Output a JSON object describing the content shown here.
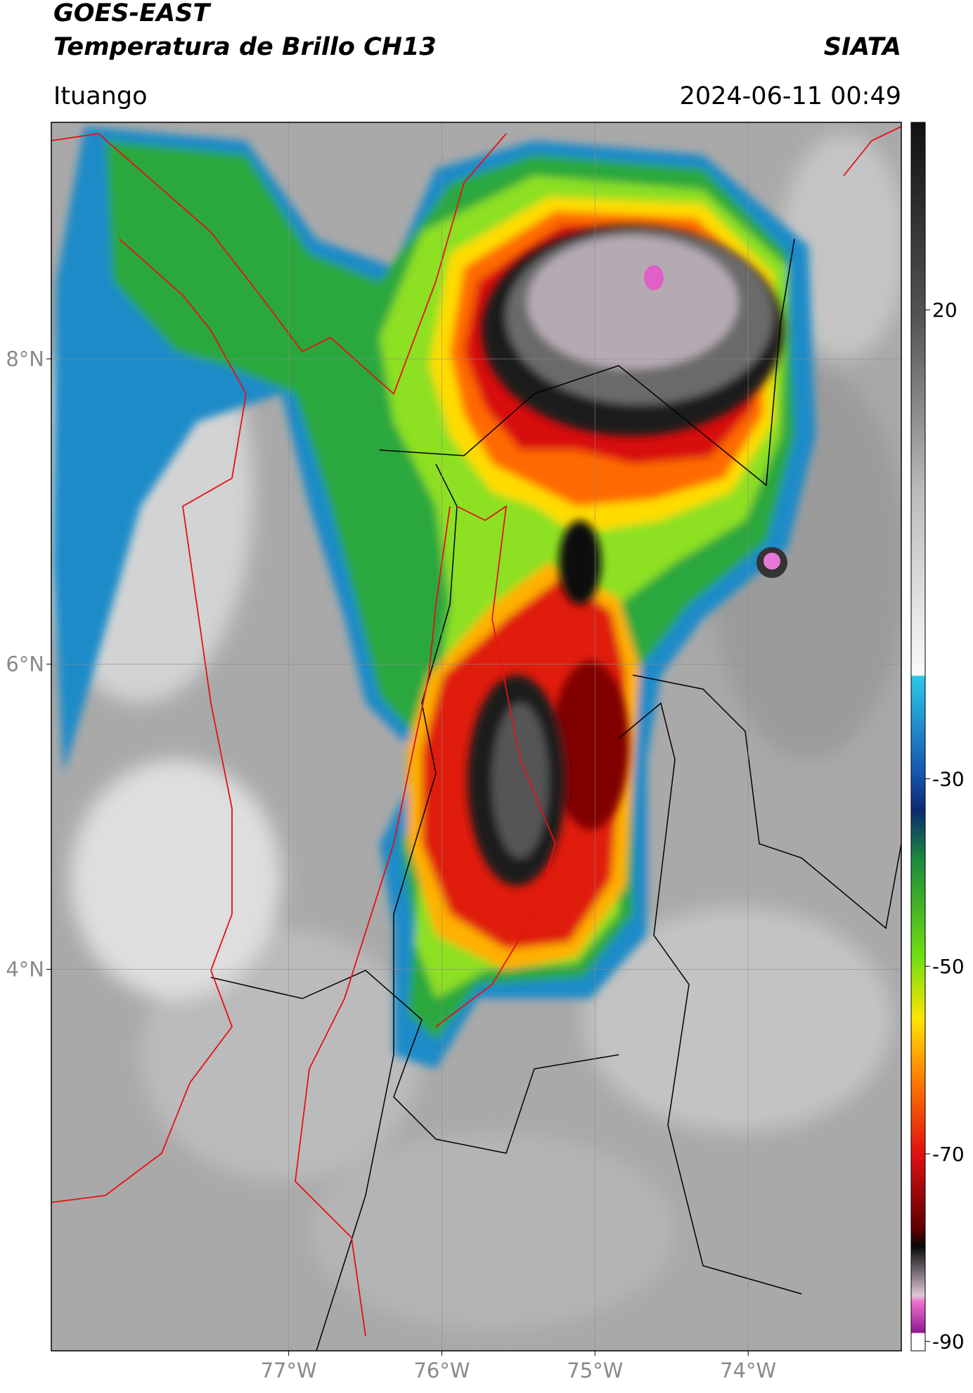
{
  "header": {
    "title": "GOES-EAST",
    "subtitle": "Temperatura de Brillo CH13",
    "credit": "SIATA",
    "location": "Ituango",
    "timestamp": "2024-06-11 00:49"
  },
  "chart_data": {
    "type": "map",
    "xlim": [
      -78.55,
      -73.0
    ],
    "ylim": [
      1.5,
      9.55
    ],
    "xticks": [
      {
        "value": -77,
        "label": "77°W"
      },
      {
        "value": -76,
        "label": "76°W"
      },
      {
        "value": -75,
        "label": "75°W"
      },
      {
        "value": -74,
        "label": "74°W"
      }
    ],
    "yticks": [
      {
        "value": 4,
        "label": "4°N"
      },
      {
        "value": 6,
        "label": "6°N"
      },
      {
        "value": 8,
        "label": "8°N"
      }
    ],
    "grid": true,
    "colorbar": {
      "lim": [
        -91,
        40
      ],
      "ticks": [
        -90,
        -70,
        -50,
        -30,
        20
      ]
    }
  }
}
